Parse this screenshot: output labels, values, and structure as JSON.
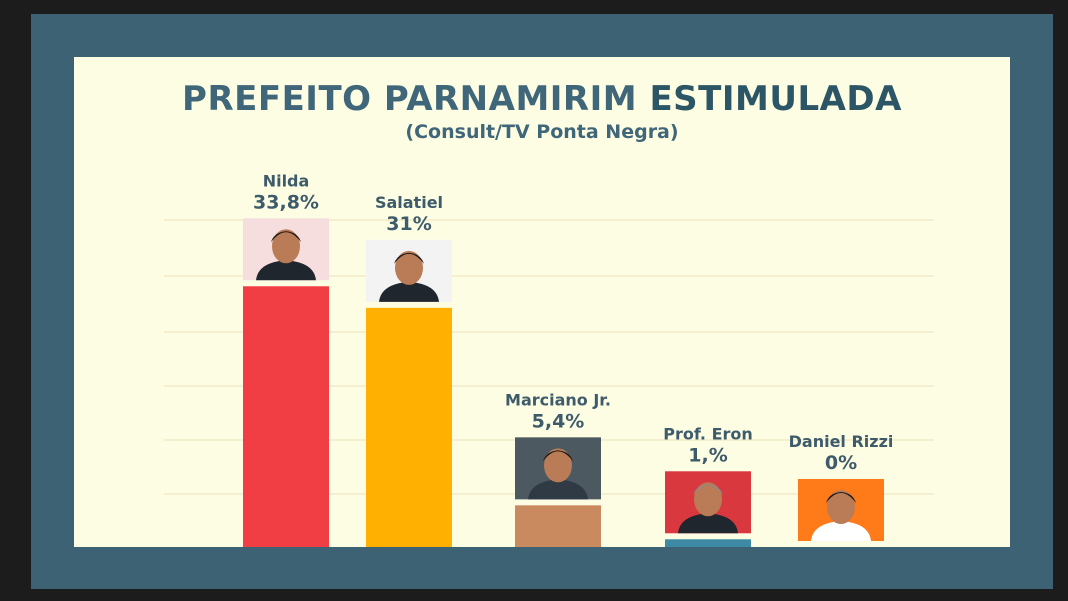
{
  "title_main": "PREFEITO PARNAMIRIM",
  "title_highlight": "ESTIMULADA",
  "subtitle": "(Consult/TV Ponta Negra)",
  "chart_data": {
    "type": "bar",
    "categories": [
      "Nilda",
      "Salatiel",
      "Marciano Jr.",
      "Prof. Eron",
      "Daniel Rizzi"
    ],
    "values": [
      33.8,
      31,
      5.4,
      1,
      0
    ],
    "value_labels": [
      "33,8%",
      "31%",
      "5,4%",
      "1,%",
      "0%"
    ],
    "colors": [
      "#f03e44",
      "#ffb000",
      "#c98a5f",
      "#3d8aa5",
      "#ff8a20"
    ],
    "photo_bg": [
      "#f7dede",
      "#f3f3f3",
      "#4d5961",
      "#d8383e",
      "#ff7a18"
    ],
    "ylim": [
      0,
      35
    ],
    "grid": true,
    "title": "PREFEITO PARNAMIRIM ESTIMULADA",
    "subtitle": "(Consult/TV Ponta Negra)",
    "xlabel": "",
    "ylabel": ""
  }
}
